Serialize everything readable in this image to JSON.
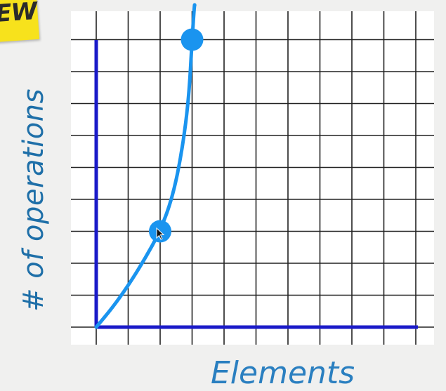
{
  "badge": {
    "text": "EW",
    "color": "#f7e21c"
  },
  "y_axis_label": "# of operations",
  "x_axis_label": "Elements",
  "colors": {
    "grid": "#222222",
    "axis": "#1a1ac8",
    "curve": "#1a94ef",
    "background": "#ffffff"
  },
  "chart_data": {
    "type": "line",
    "curve": "exponential",
    "highlighted_points": [
      {
        "grid_x": 2,
        "grid_y": 3
      },
      {
        "grid_x": 3,
        "grid_y": 9
      }
    ],
    "grid": true,
    "cursor": "on-lower-point"
  }
}
